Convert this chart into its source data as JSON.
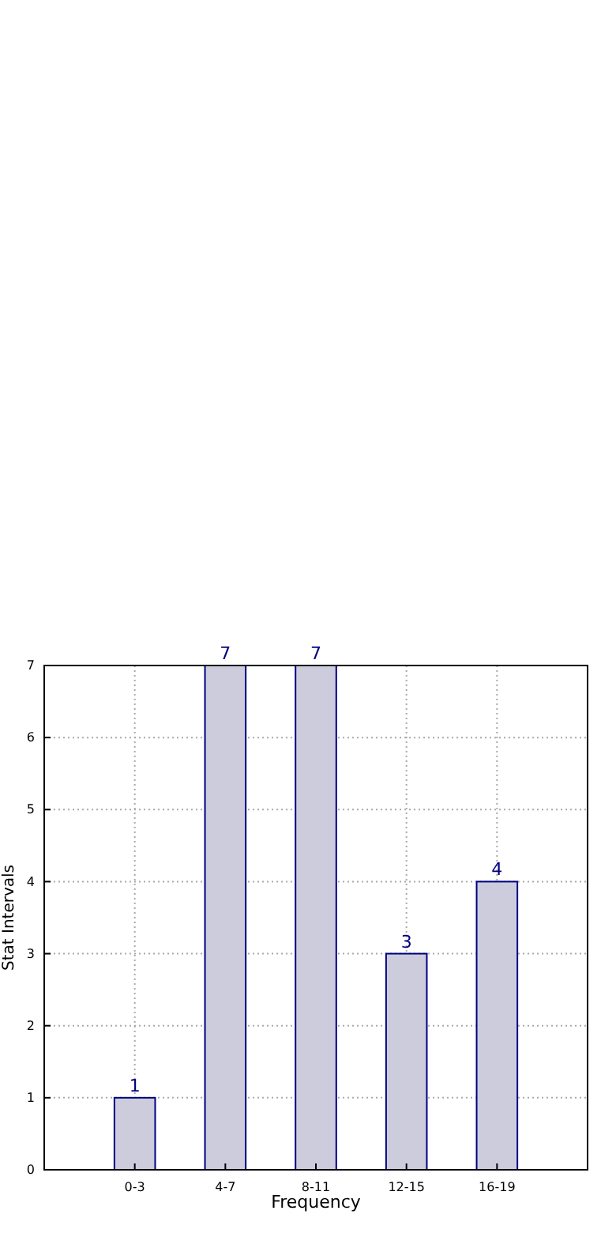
{
  "chart_data": {
    "type": "bar",
    "xlabel": "Frequency",
    "ylabel": "Stat Intervals",
    "categories": [
      "0-3",
      "4-7",
      "8-11",
      "12-15",
      "16-19"
    ],
    "values": [
      1,
      7,
      7,
      3,
      4
    ],
    "color": "#ccccdd",
    "ylim": [
      0,
      7
    ],
    "yticks": [
      0,
      1,
      2,
      3,
      4,
      5,
      6,
      7
    ],
    "grid": true,
    "data_labels": true
  }
}
